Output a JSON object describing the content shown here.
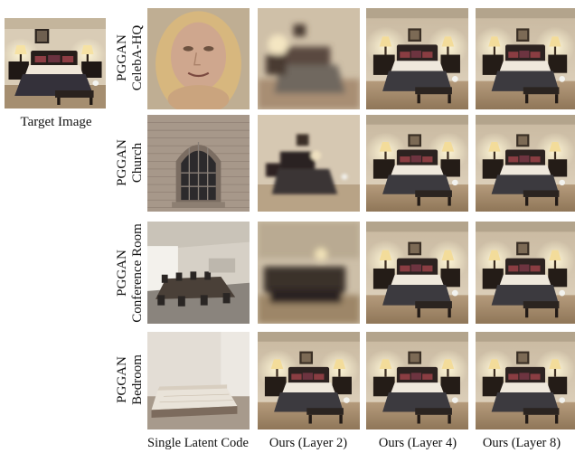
{
  "target": {
    "caption": "Target Image"
  },
  "rows": [
    {
      "model": "PGGAN",
      "dataset": "CelebA-HQ"
    },
    {
      "model": "PGGAN",
      "dataset": "Church"
    },
    {
      "model": "PGGAN",
      "dataset": "Conference Room"
    },
    {
      "model": "PGGAN",
      "dataset": "Bedroom"
    }
  ],
  "columns": [
    {
      "caption": "Single Latent Code"
    },
    {
      "caption": "Ours (Layer 2)"
    },
    {
      "caption": "Ours (Layer 4)"
    },
    {
      "caption": "Ours (Layer 8)"
    }
  ],
  "images": {
    "target": "bedroom-photo",
    "grid": [
      [
        "blonde-face",
        "blurry-bedroom",
        "bedroom",
        "bedroom"
      ],
      [
        "brick-church-window",
        "dark-bedroom",
        "bedroom",
        "bedroom"
      ],
      [
        "conference-room",
        "dark-blurry-bedroom",
        "bedroom",
        "bedroom"
      ],
      [
        "empty-bed-room",
        "bedroom",
        "bedroom",
        "bedroom"
      ]
    ]
  }
}
